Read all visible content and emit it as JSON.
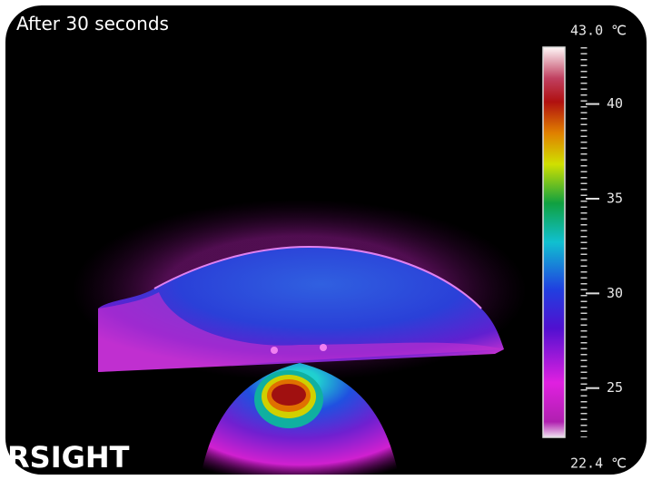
{
  "caption": "After 30 seconds",
  "logo": "RSIGHT",
  "scale": {
    "max": {
      "value": 43.0,
      "label": "43.0 ℃"
    },
    "min": {
      "value": 22.4,
      "label": "22.4 ℃"
    },
    "ticks": [
      25,
      30,
      35,
      40
    ]
  }
}
